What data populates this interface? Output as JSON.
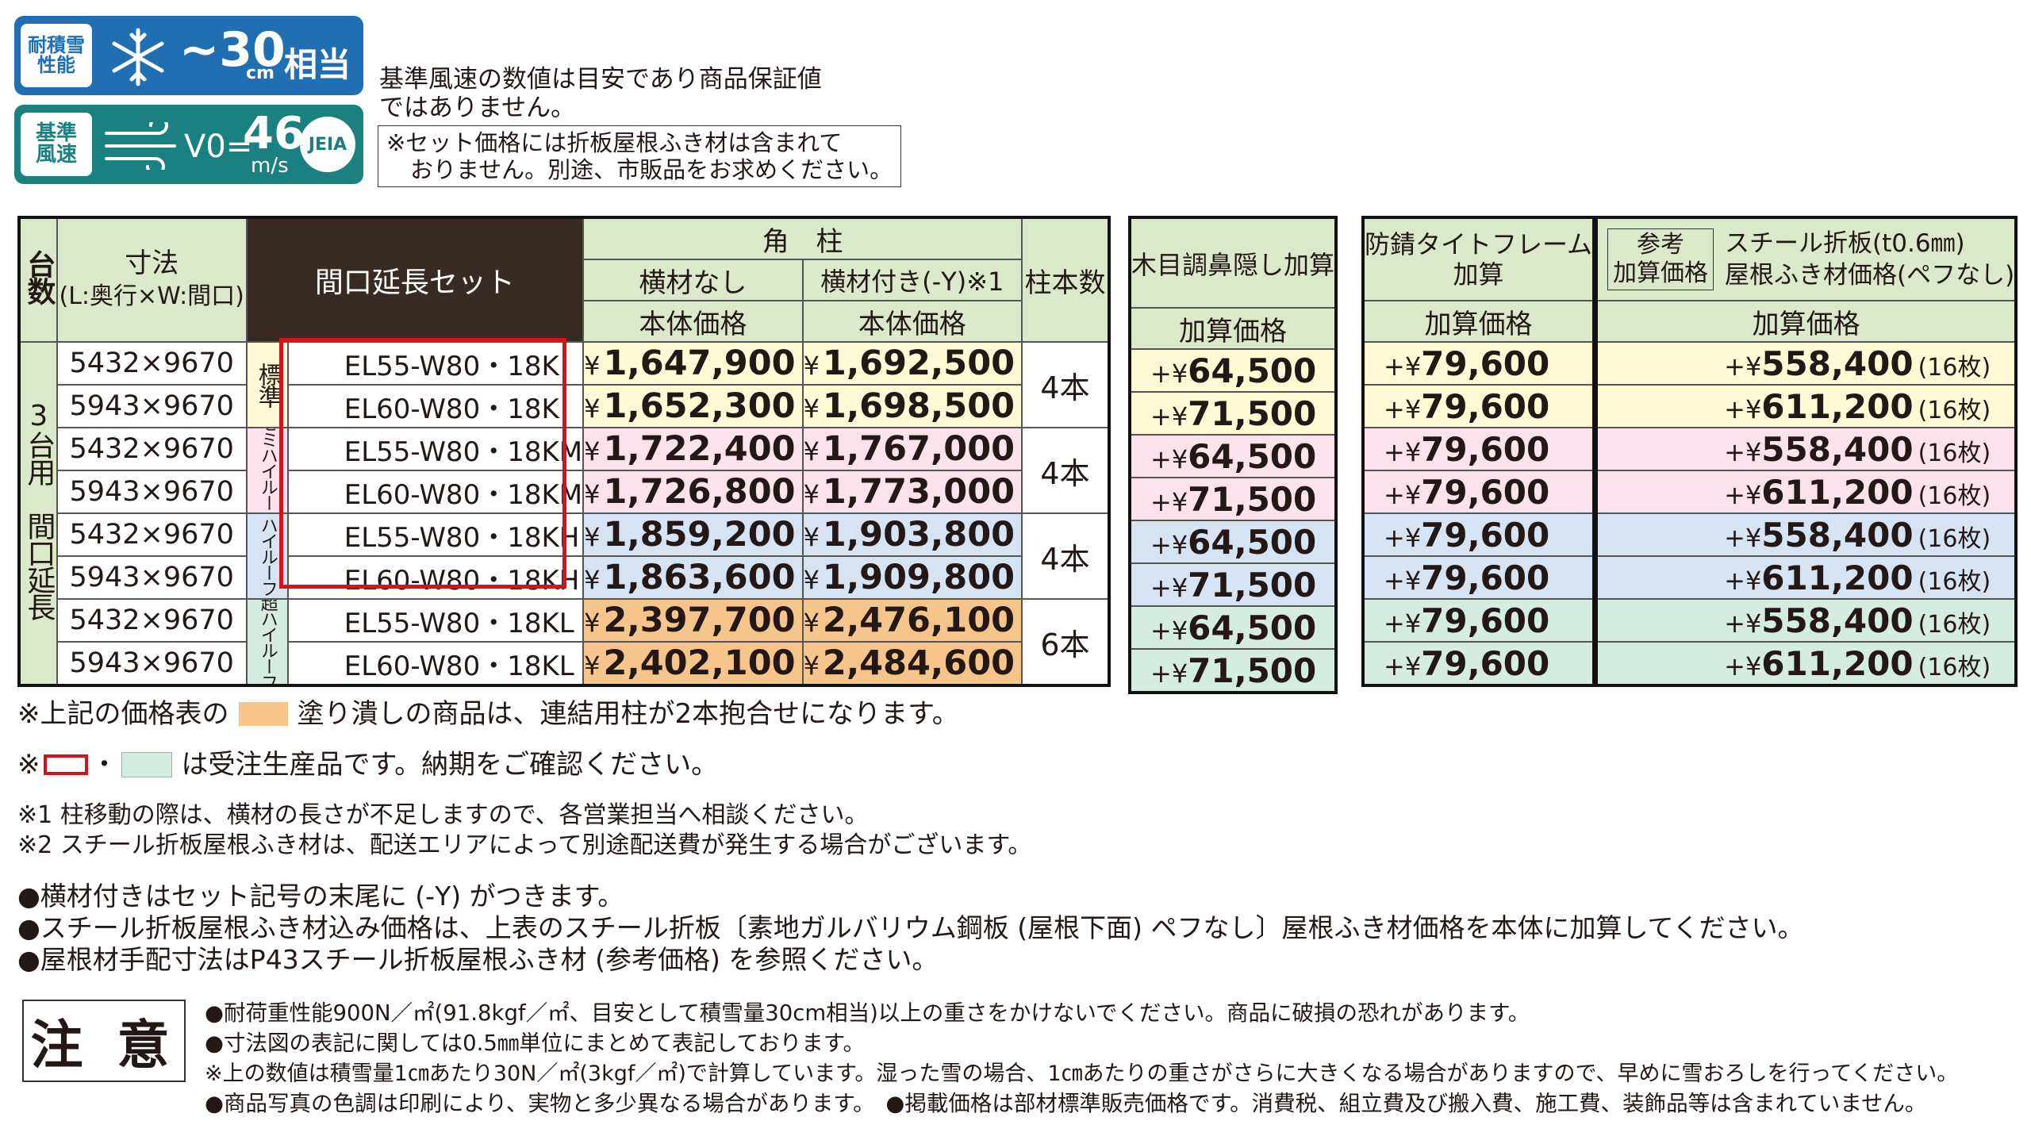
{
  "badges": {
    "snow": {
      "label_1": "耐積雪",
      "label_2": "性能",
      "value": "~30",
      "unit": "cm",
      "suffix": "相当",
      "icon": "snowflake-icon",
      "color": "#1f6fb2"
    },
    "wind": {
      "label_1": "基準",
      "label_2": "風速",
      "prefix": "V0=",
      "value": "46",
      "unit": "m/s",
      "icon": "wind-icon",
      "logo": "JEIA",
      "color": "#1a8080"
    }
  },
  "header_notes": {
    "note_1": "基準風速の数値は目安であり商品保証値",
    "note_2": "ではありません。",
    "boxed_1": "※セット価格には折板屋根ふき材は含まれて",
    "boxed_2": "おりません。別途、市販品をお求めください。"
  },
  "main_table": {
    "headers": {
      "units": "台数",
      "size_1": "寸法",
      "size_2": "(L:奥行×W:間口)",
      "set": "間口延長セット",
      "post": "角　柱",
      "no_beam": "横材なし",
      "with_beam": "横材付き(-Y)※1",
      "body_price_1": "本体価格",
      "body_price_2": "本体価格",
      "post_count": "柱本数"
    },
    "side_label": "3台用　間口延長",
    "groups": [
      {
        "label": "標準",
        "count": "4本",
        "color": "#fff9d6",
        "rows": [
          {
            "size": "5432×9670",
            "code": "EL55-W80・18K",
            "no_beam": "1,647,900",
            "with_beam": "1,692,500"
          },
          {
            "size": "5943×9670",
            "code": "EL60-W80・18K",
            "no_beam": "1,652,300",
            "with_beam": "1,698,500"
          }
        ]
      },
      {
        "label": "セミハイルーフ",
        "count": "4本",
        "color": "#fbe2ec",
        "rows": [
          {
            "size": "5432×9670",
            "code": "EL55-W80・18KM",
            "no_beam": "1,722,400",
            "with_beam": "1,767,000"
          },
          {
            "size": "5943×9670",
            "code": "EL60-W80・18KM",
            "no_beam": "1,726,800",
            "with_beam": "1,773,000"
          }
        ]
      },
      {
        "label": "ハイルーフ",
        "count": "4本",
        "color": "#d5e3f2",
        "rows": [
          {
            "size": "5432×9670",
            "code": "EL55-W80・18KH",
            "no_beam": "1,859,200",
            "with_beam": "1,903,800"
          },
          {
            "size": "5943×9670",
            "code": "EL60-W80・18KH",
            "no_beam": "1,863,600",
            "with_beam": "1,909,800"
          }
        ]
      },
      {
        "label": "超ハイルーフ",
        "count": "6本",
        "color": "#d5ece0",
        "rows": [
          {
            "size": "5432×9670",
            "code": "EL55-W80・18KL",
            "no_beam": "2,397,700",
            "with_beam": "2,476,100"
          },
          {
            "size": "5943×9670",
            "code": "EL60-W80・18KL",
            "no_beam": "2,402,100",
            "with_beam": "2,484,600"
          }
        ]
      }
    ],
    "yen": "¥"
  },
  "wood_table": {
    "title": "木目調鼻隠し加算",
    "sub": "加算価格",
    "values": [
      "64,500",
      "71,500",
      "64,500",
      "71,500",
      "64,500",
      "71,500",
      "64,500",
      "71,500"
    ]
  },
  "frame_table": {
    "title_1": "防錆タイトフレーム",
    "title_2": "加算",
    "sub": "加算価格",
    "values": [
      "79,600",
      "79,600",
      "79,600",
      "79,600",
      "79,600",
      "79,600",
      "79,600",
      "79,600"
    ]
  },
  "steel_table": {
    "ref_1": "参考",
    "ref_2": "加算価格",
    "title_1": "スチール折板(t0.6㎜)",
    "title_2": "屋根ふき材価格(ペフなし)",
    "sub": "加算価格",
    "values": [
      "558,400",
      "611,200",
      "558,400",
      "611,200",
      "558,400",
      "611,200",
      "558,400",
      "611,200"
    ],
    "count": "(16枚)"
  },
  "plus_yen": "+¥",
  "footnotes": {
    "f1_a": "※上記の価格表の",
    "f1_b": "塗り潰しの商品は、連結用柱が2本抱合せになります。",
    "f2_a": "※",
    "f2_b": "・",
    "f2_c": "は受注生産品です。納期をご確認ください。",
    "f3": "※1 柱移動の際は、横材の長さが不足しますので、各営業担当へ相談ください。",
    "f4": "※2 スチール折板屋根ふき材は、配送エリアによって別途配送費が発生する場合がございます。",
    "b1": "●横材付きはセット記号の末尾に (-Y) がつきます。",
    "b2": "●スチール折板屋根ふき材込み価格は、上表のスチール折板〔素地ガルバリウム鋼板 (屋根下面) ペフなし〕屋根ふき材価格を本体に加算してください。",
    "b3": "●屋根材手配寸法はP43スチール折板屋根ふき材 (参考価格) を参照ください。"
  },
  "caution": {
    "label": "注 意",
    "n1": "●耐荷重性能900N／㎡(91.8kgf／㎡、目安として積雪量30cm相当)以上の重さをかけないでください。商品に破損の恐れがあります。",
    "n2": "●寸法図の表記に関しては0.5㎜単位にまとめて表記しております。",
    "n3": "※上の数値は積雪量1㎝あたり30N／㎡(3kgf／㎡)で計算しています。湿った雪の場合、1㎝あたりの重さがさらに大きくなる場合がありますので、早めに雪おろしを行ってください。",
    "n4": "●商品写真の色調は印刷により、実物と多少異なる場合があります。　●掲載価格は部材標準販売価格です。消費税、組立費及び搬入費、施工費、装飾品等は含まれていません。"
  }
}
